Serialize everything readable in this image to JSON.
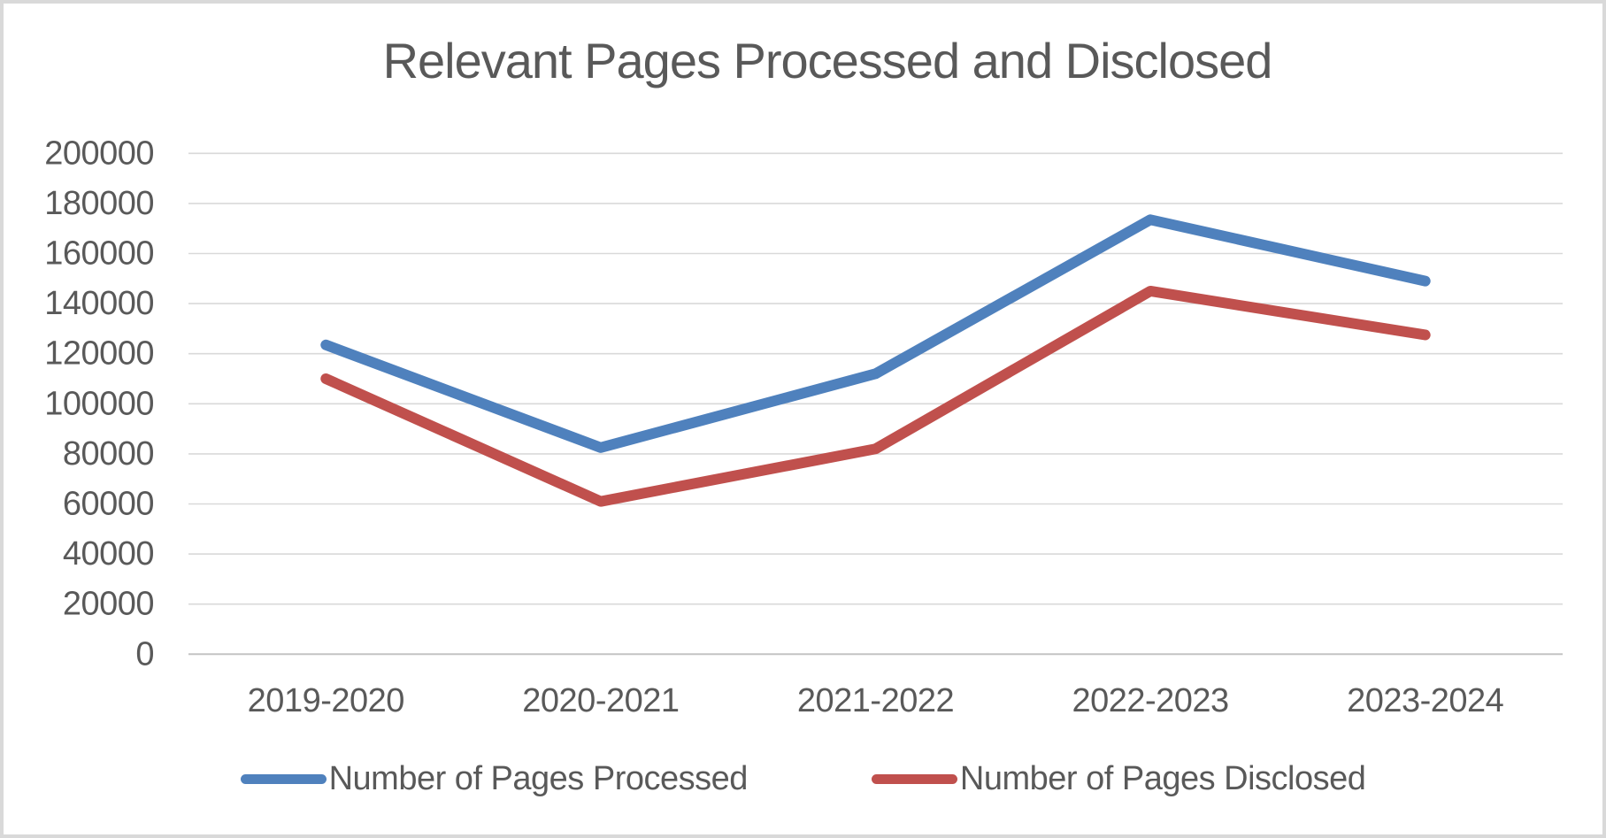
{
  "frame": {
    "background": "#ffffff",
    "border_color": "#d9d9d9"
  },
  "chart_data": {
    "type": "line",
    "title": "Relevant Pages Processed and Disclosed",
    "categories": [
      "2019-2020",
      "2020-2021",
      "2021-2022",
      "2022-2023",
      "2023-2024"
    ],
    "series": [
      {
        "name": "Number of Pages Processed",
        "color": "#4F81BD",
        "values": [
          123500,
          82500,
          112000,
          173500,
          149000
        ]
      },
      {
        "name": "Number of Pages Disclosed",
        "color": "#C0504D",
        "values": [
          110000,
          61000,
          82000,
          145000,
          127500
        ]
      }
    ],
    "y_ticks": [
      0,
      20000,
      40000,
      60000,
      80000,
      100000,
      120000,
      140000,
      160000,
      180000,
      200000
    ],
    "ylim": [
      0,
      200000
    ],
    "xlabel": "",
    "ylabel": "",
    "grid": true,
    "gridline_color": "#d9d9d9",
    "axis_line_color": "#c3c3c3",
    "text_color": "#595959",
    "legend_position": "bottom"
  }
}
